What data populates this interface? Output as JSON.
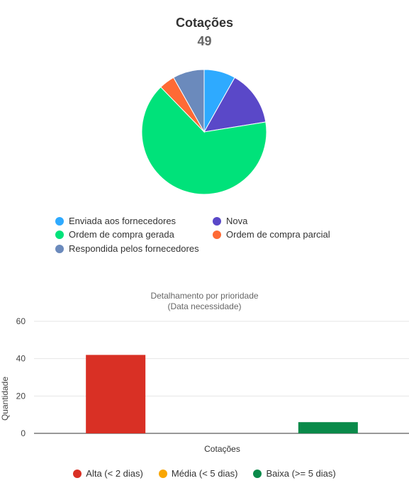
{
  "chart_data": [
    {
      "type": "pie",
      "title": "Cotações",
      "total": "49",
      "slices": [
        {
          "label": "Enviada aos fornecedores",
          "value": 4,
          "color": "#2eaaff"
        },
        {
          "label": "Nova",
          "value": 7,
          "color": "#5a48c8"
        },
        {
          "label": "Ordem de compra gerada",
          "value": 32,
          "color": "#00e27a"
        },
        {
          "label": "Ordem de compra parcial",
          "value": 2,
          "color": "#fe6a35"
        },
        {
          "label": "Respondida pelos fornecedores",
          "value": 4,
          "color": "#6b8abc"
        }
      ],
      "legend_placement": "bottom"
    },
    {
      "type": "bar",
      "title": "Detalhamento por prioridade",
      "subtitle": "(Data necessidade)",
      "xlabel": "Cotações",
      "ylabel": "Quantidade",
      "ylim": [
        0,
        60
      ],
      "yticks": [
        "0",
        "20",
        "40",
        "60"
      ],
      "grid": true,
      "legend_placement": "bottom",
      "series": [
        {
          "name": "Alta (< 2 dias)",
          "values": [
            42
          ],
          "color": "#d93025"
        },
        {
          "name": "Média (< 5 dias)",
          "values": [
            0
          ],
          "color": "#f9a602"
        },
        {
          "name": "Baixa (>= 5 dias)",
          "values": [
            6
          ],
          "color": "#0a8a4a"
        }
      ]
    }
  ]
}
